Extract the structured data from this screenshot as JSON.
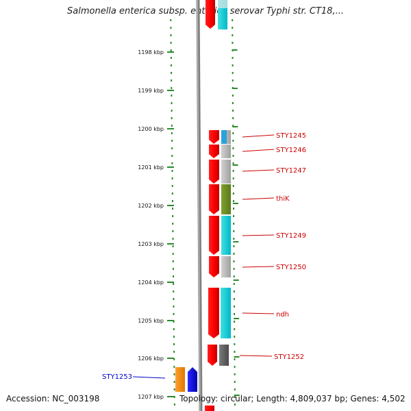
{
  "title": "Salmonella enterica subsp. enterica serovar Typhi str. CT18,...",
  "footer": {
    "accession": "Accession: NC_003198",
    "summary": "Topology: circular; Length: 4,809,037 bp; Genes: 4,502"
  },
  "scale": {
    "ticks": [
      "1198 kbp",
      "1199 kbp",
      "1200 kbp",
      "1201 kbp",
      "1202 kbp",
      "1203 kbp",
      "1204 kbp",
      "1205 kbp",
      "1206 kbp",
      "1207 kbp"
    ]
  },
  "genes": [
    {
      "label": "STY1245",
      "color": "#cc0000"
    },
    {
      "label": "STY1246",
      "color": "#cc0000"
    },
    {
      "label": "STY1247",
      "color": "#cc0000"
    },
    {
      "label": "thiK",
      "color": "#cc0000"
    },
    {
      "label": "STY1249",
      "color": "#cc0000"
    },
    {
      "label": "STY1250",
      "color": "#cc0000"
    },
    {
      "label": "ndh",
      "color": "#cc0000"
    },
    {
      "label": "STY1252",
      "color": "#cc0000"
    },
    {
      "label": "STY1253",
      "color": "#0000cc"
    }
  ],
  "colors": {
    "forward_cds": "#ff0000",
    "reverse_cds": "#0000ff",
    "orange_feature": "#ff8c00",
    "backbone": "#808080",
    "tick": "#2a8a2a",
    "cog_cyan": "#00cccc",
    "cog_gray": "#b4b4b4",
    "cog_olive": "#6b8e23",
    "cog_dark": "#555555"
  }
}
